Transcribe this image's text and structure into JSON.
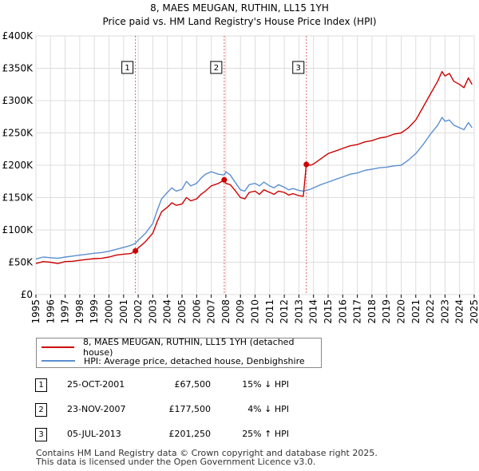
{
  "title_line1": "8, MAES MEUGAN, RUTHIN, LL15 1YH",
  "title_line2": "Price paid vs. HM Land Registry's House Price Index (HPI)",
  "colors": {
    "property": "#cc0000",
    "hpi": "#5b8fd0",
    "grid": "#dddddd",
    "marker_line": "#cc0000"
  },
  "chart_data": {
    "type": "line",
    "xlim": [
      1995,
      2025
    ],
    "ylim": [
      0,
      400000
    ],
    "x_ticks": [
      "1995",
      "1996",
      "1997",
      "1998",
      "1999",
      "2000",
      "2001",
      "2002",
      "2003",
      "2004",
      "2005",
      "2006",
      "2007",
      "2008",
      "2009",
      "2010",
      "2011",
      "2012",
      "2013",
      "2014",
      "2015",
      "2016",
      "2017",
      "2018",
      "2019",
      "2020",
      "2021",
      "2022",
      "2023",
      "2024",
      "2025"
    ],
    "y_ticks": [
      {
        "value": 0,
        "label": "£0"
      },
      {
        "value": 50000,
        "label": "£50K"
      },
      {
        "value": 100000,
        "label": "£100K"
      },
      {
        "value": 150000,
        "label": "£150K"
      },
      {
        "value": 200000,
        "label": "£200K"
      },
      {
        "value": 250000,
        "label": "£250K"
      },
      {
        "value": 300000,
        "label": "£300K"
      },
      {
        "value": 350000,
        "label": "£350K"
      },
      {
        "value": 400000,
        "label": "£400K"
      }
    ],
    "series": [
      {
        "name": "8, MAES MEUGAN, RUTHIN, LL15 1YH (detached house)",
        "color": "#cc0000",
        "points": [
          [
            1995.0,
            48000
          ],
          [
            1995.5,
            51000
          ],
          [
            1996.0,
            50000
          ],
          [
            1996.5,
            48000
          ],
          [
            1997.0,
            51000
          ],
          [
            1997.5,
            51500
          ],
          [
            1998.0,
            53000
          ],
          [
            1998.5,
            54500
          ],
          [
            1999.0,
            55500
          ],
          [
            1999.5,
            56000
          ],
          [
            2000.0,
            58000
          ],
          [
            2000.5,
            61000
          ],
          [
            2001.0,
            62500
          ],
          [
            2001.5,
            63500
          ],
          [
            2001.81,
            67500
          ],
          [
            2002.0,
            72000
          ],
          [
            2002.5,
            82000
          ],
          [
            2003.0,
            95000
          ],
          [
            2003.3,
            113000
          ],
          [
            2003.6,
            128000
          ],
          [
            2004.0,
            135000
          ],
          [
            2004.3,
            142000
          ],
          [
            2004.6,
            138000
          ],
          [
            2005.0,
            140000
          ],
          [
            2005.3,
            150000
          ],
          [
            2005.6,
            145000
          ],
          [
            2006.0,
            148000
          ],
          [
            2006.3,
            155000
          ],
          [
            2006.6,
            160000
          ],
          [
            2007.0,
            168000
          ],
          [
            2007.5,
            172000
          ],
          [
            2007.89,
            177500
          ],
          [
            2008.0,
            172000
          ],
          [
            2008.3,
            170000
          ],
          [
            2008.6,
            162000
          ],
          [
            2009.0,
            150000
          ],
          [
            2009.3,
            148000
          ],
          [
            2009.6,
            158000
          ],
          [
            2010.0,
            160000
          ],
          [
            2010.3,
            155000
          ],
          [
            2010.6,
            162000
          ],
          [
            2011.0,
            158000
          ],
          [
            2011.3,
            155000
          ],
          [
            2011.6,
            160000
          ],
          [
            2012.0,
            158000
          ],
          [
            2012.3,
            154000
          ],
          [
            2012.6,
            156000
          ],
          [
            2013.0,
            153000
          ],
          [
            2013.3,
            152000
          ],
          [
            2013.51,
            201250
          ],
          [
            2013.8,
            200000
          ],
          [
            2014.0,
            202000
          ],
          [
            2014.5,
            210000
          ],
          [
            2015.0,
            218000
          ],
          [
            2015.5,
            222000
          ],
          [
            2016.0,
            226000
          ],
          [
            2016.5,
            230000
          ],
          [
            2017.0,
            232000
          ],
          [
            2017.5,
            236000
          ],
          [
            2018.0,
            238000
          ],
          [
            2018.5,
            242000
          ],
          [
            2019.0,
            244000
          ],
          [
            2019.5,
            248000
          ],
          [
            2020.0,
            250000
          ],
          [
            2020.5,
            258000
          ],
          [
            2021.0,
            270000
          ],
          [
            2021.5,
            290000
          ],
          [
            2022.0,
            310000
          ],
          [
            2022.5,
            330000
          ],
          [
            2022.8,
            345000
          ],
          [
            2023.0,
            338000
          ],
          [
            2023.3,
            342000
          ],
          [
            2023.6,
            330000
          ],
          [
            2024.0,
            325000
          ],
          [
            2024.3,
            320000
          ],
          [
            2024.6,
            335000
          ],
          [
            2024.85,
            325000
          ]
        ]
      },
      {
        "name": "HPI: Average price, detached house, Denbighshire",
        "color": "#5b8fd0",
        "points": [
          [
            1995.0,
            55000
          ],
          [
            1995.5,
            58000
          ],
          [
            1996.0,
            57000
          ],
          [
            1996.5,
            56000
          ],
          [
            1997.0,
            58000
          ],
          [
            1997.5,
            59500
          ],
          [
            1998.0,
            61000
          ],
          [
            1998.5,
            62500
          ],
          [
            1999.0,
            64000
          ],
          [
            1999.5,
            65000
          ],
          [
            2000.0,
            67000
          ],
          [
            2000.5,
            70000
          ],
          [
            2001.0,
            73000
          ],
          [
            2001.5,
            76000
          ],
          [
            2001.81,
            79500
          ],
          [
            2002.0,
            84000
          ],
          [
            2002.5,
            95000
          ],
          [
            2003.0,
            110000
          ],
          [
            2003.3,
            130000
          ],
          [
            2003.6,
            148000
          ],
          [
            2004.0,
            158000
          ],
          [
            2004.3,
            165000
          ],
          [
            2004.6,
            160000
          ],
          [
            2005.0,
            163000
          ],
          [
            2005.3,
            175000
          ],
          [
            2005.6,
            168000
          ],
          [
            2006.0,
            172000
          ],
          [
            2006.3,
            180000
          ],
          [
            2006.6,
            186000
          ],
          [
            2007.0,
            190000
          ],
          [
            2007.5,
            186000
          ],
          [
            2007.89,
            185000
          ],
          [
            2008.0,
            190000
          ],
          [
            2008.3,
            185000
          ],
          [
            2008.6,
            175000
          ],
          [
            2009.0,
            162000
          ],
          [
            2009.3,
            160000
          ],
          [
            2009.6,
            170000
          ],
          [
            2010.0,
            172000
          ],
          [
            2010.3,
            168000
          ],
          [
            2010.6,
            174000
          ],
          [
            2011.0,
            168000
          ],
          [
            2011.3,
            165000
          ],
          [
            2011.6,
            170000
          ],
          [
            2012.0,
            166000
          ],
          [
            2012.3,
            162000
          ],
          [
            2012.6,
            164000
          ],
          [
            2013.0,
            161000
          ],
          [
            2013.3,
            160000
          ],
          [
            2013.51,
            161000
          ],
          [
            2013.8,
            163000
          ],
          [
            2014.0,
            165000
          ],
          [
            2014.5,
            170000
          ],
          [
            2015.0,
            174000
          ],
          [
            2015.5,
            178000
          ],
          [
            2016.0,
            182000
          ],
          [
            2016.5,
            186000
          ],
          [
            2017.0,
            188000
          ],
          [
            2017.5,
            192000
          ],
          [
            2018.0,
            194000
          ],
          [
            2018.5,
            196000
          ],
          [
            2019.0,
            197000
          ],
          [
            2019.5,
            199000
          ],
          [
            2020.0,
            200000
          ],
          [
            2020.5,
            208000
          ],
          [
            2021.0,
            218000
          ],
          [
            2021.5,
            232000
          ],
          [
            2022.0,
            248000
          ],
          [
            2022.5,
            262000
          ],
          [
            2022.8,
            274000
          ],
          [
            2023.0,
            268000
          ],
          [
            2023.3,
            270000
          ],
          [
            2023.6,
            262000
          ],
          [
            2024.0,
            258000
          ],
          [
            2024.3,
            255000
          ],
          [
            2024.6,
            266000
          ],
          [
            2024.85,
            258000
          ]
        ]
      }
    ],
    "transactions": [
      {
        "label": "1",
        "x": 2001.81,
        "price": 67500
      },
      {
        "label": "2",
        "x": 2007.89,
        "price": 177500
      },
      {
        "label": "3",
        "x": 2013.51,
        "price": 201250
      }
    ]
  },
  "legend": {
    "property_label": "8, MAES MEUGAN, RUTHIN, LL15 1YH (detached house)",
    "hpi_label": "HPI: Average price, detached house, Denbighshire"
  },
  "table": [
    {
      "num": "1",
      "date": "25-OCT-2001",
      "price": "£67,500",
      "hpi": "15% ↓ HPI"
    },
    {
      "num": "2",
      "date": "23-NOV-2007",
      "price": "£177,500",
      "hpi": "4% ↓ HPI"
    },
    {
      "num": "3",
      "date": "05-JUL-2013",
      "price": "£201,250",
      "hpi": "25% ↑ HPI"
    }
  ],
  "footer": {
    "line1": "Contains HM Land Registry data © Crown copyright and database right 2025.",
    "line2": "This data is licensed under the Open Government Licence v3.0."
  }
}
